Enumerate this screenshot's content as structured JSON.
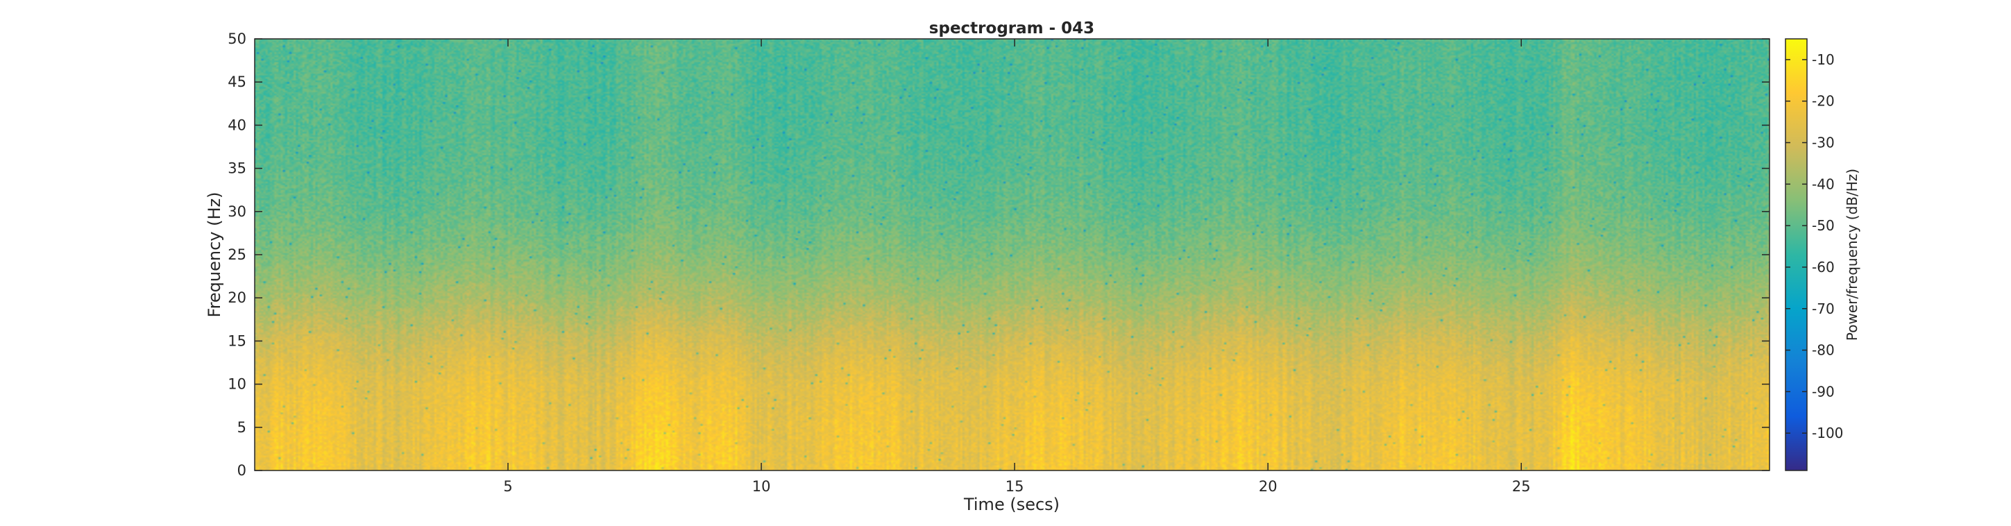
{
  "chart_data": {
    "type": "heatmap",
    "title": "spectrogram - 043",
    "xlabel": "Time (secs)",
    "ylabel": "Frequency (Hz)",
    "xlim": [
      0,
      29.9
    ],
    "ylim": [
      0,
      50
    ],
    "xticks": [
      5,
      10,
      15,
      20,
      25
    ],
    "yticks": [
      0,
      5,
      10,
      15,
      20,
      25,
      30,
      35,
      40,
      45,
      50
    ],
    "colorbar": {
      "label": "Power/frequency (dB/Hz)",
      "range": [
        -109,
        -5
      ],
      "ticks": [
        -100,
        -90,
        -80,
        -70,
        -60,
        -50,
        -40,
        -30,
        -20,
        -10
      ],
      "colormap": "parula"
    },
    "power_profile_db": {
      "frequency_hz": [
        0,
        5,
        10,
        15,
        20,
        25,
        30,
        35,
        40,
        45,
        50
      ],
      "typical_power_db": [
        -22,
        -23,
        -25,
        -31,
        -39,
        -45,
        -49,
        -51,
        -52,
        -52,
        -52
      ]
    },
    "bright_time_regions_secs": [
      7.8,
      9.3,
      26.0
    ],
    "grid": false
  },
  "colors": {
    "parula": [
      "#352a87",
      "#0f5cdd",
      "#1481d6",
      "#06a4ca",
      "#2eb7a4",
      "#87bf77",
      "#d1bb59",
      "#fec832",
      "#f9fb0e"
    ]
  }
}
